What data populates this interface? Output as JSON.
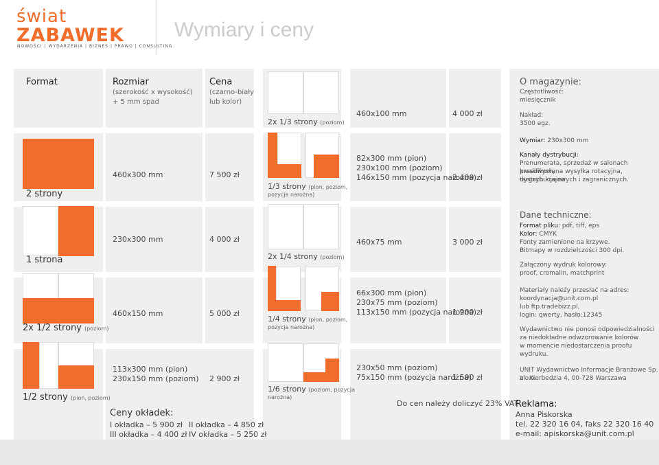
{
  "logo": {
    "line1": "świat",
    "line2": "ZABAWEK",
    "tagline": "NOWOŚCI | WYDARZENIA | BIZNES | PRAWO | CONSULTING"
  },
  "page_title": "Wymiary i ceny",
  "colors": {
    "accent": "#f26c2b",
    "panel": "#efefef"
  },
  "headers": {
    "format": "Format",
    "size_title": "Rozmiar",
    "size_note1": "(szerokość x wysokość)",
    "size_note2": "+ 5 mm spad",
    "price_title": "Cena",
    "price_note1": "(czarno-biały",
    "price_note2": "lub kolor)"
  },
  "left_rows": [
    {
      "label": "2 strony",
      "size": "460x300 mm",
      "price": "7 500 zł"
    },
    {
      "label": "1 strona",
      "size": "230x300 mm",
      "price": "4 000 zł"
    },
    {
      "label": "2x 1/2 strony",
      "label_note": "(poziom)",
      "size": "460x150 mm",
      "price": "5 000 zł"
    },
    {
      "label": "1/2 strony",
      "label_note": "(pion, poziom)",
      "size1": "113x300 mm (pion)",
      "size2": "230x150 mm (poziom)",
      "price": "2 900 zł"
    }
  ],
  "cover_prices": {
    "title": "Ceny okładek:",
    "c1": "I okładka – 5 900 zł",
    "c2": "II okładka – 4 850 zł",
    "c3": "III okładka – 4 400 zł",
    "c4": "IV okładka – 5 250 zł"
  },
  "mid_rows": [
    {
      "label": "2x 1/3 strony",
      "label_note": "(poziom)",
      "size": "460x100 mm",
      "price": "4 000 zł"
    },
    {
      "label": "1/3 strony",
      "label_note": "(pion, poziom,",
      "label_note2": "pozycja narożna)",
      "size1": "82x300 mm (pion)",
      "size2": "230x100 mm (poziom)",
      "size3": "146x150 mm (pozycja narożna)",
      "price": "2 400 zł"
    },
    {
      "label": "2x 1/4 strony",
      "label_note": "(poziom)",
      "size": "460x75 mm",
      "price": "3 000 zł"
    },
    {
      "label": "1/4 strony",
      "label_note": "(pion, poziom,",
      "label_note2": "pozycja narożna)",
      "size1": "66x300 mm (pion)",
      "size2": "230x75 mm (poziom)",
      "size3": "113x150 mm (pozycja narożna)",
      "price": "1 900 zł"
    },
    {
      "label": "1/6 strony",
      "label_note": "(poziom, pozycja",
      "label_note2": "narożna)",
      "size1": "230x50 mm (poziom)",
      "size2": "75x150 mm (pozycja narożna)",
      "price": "1 500 zł"
    }
  ],
  "vat_note": "Do cen należy doliczyć 23% VAT",
  "magazine": {
    "title": "O magazynie:",
    "freq_label": "Częstotliwość:",
    "freq_value": "miesięcznik",
    "run_label": "Nakład:",
    "run_value": "3500 egz.",
    "dim_label": "Wymiar:",
    "dim_value": "230x300 mm",
    "dist_label": "Kanały dystrybucji:",
    "dist_1": "Prenumerata, sprzedaż w salonach prasowych,",
    "dist_2": "kwalifikowana wysyłka rotacyjna, dystrybucja na",
    "dist_3": "targach krajowych i zagranicznych."
  },
  "tech": {
    "title": "Dane techniczne:",
    "file_label": "Format pliku:",
    "file_value": "pdf, tiff, eps",
    "color_label": "Kolor:",
    "color_value": "CMYK",
    "fonts": "Fonty zamienione na krzywe.",
    "bitmaps": "Bitmapy w rozdzielczości 300 dpi.",
    "proof1": "Załączony wydruk kolorowy:",
    "proof2": "proof, cromalin, matchprint",
    "send1": "Materiały należy przesłać na adres:",
    "send2": "koordynacja@unit.com.pl",
    "send3": "lub ftp.tradebizz.pl,",
    "send4": "login: qwerty, hasło:12345",
    "disc1": "Wydawnictwo nie ponosi odpowiedzialności",
    "disc2": "za niedokładne odwzorowanie kolorów",
    "disc3": "w momencie niedostarczenia proofu wydruku."
  },
  "publisher": {
    "name": "UNIT Wydawnictwo Informacje Branżowe Sp. z o.o.",
    "address": "ul. Kierbedzia 4, 00-728 Warszawa"
  },
  "contact": {
    "title": "Reklama:",
    "person": "Anna Piskorska",
    "phone": "tel. 22 320 16 04, faks 22 320 16 40",
    "email": "e-mail: apiskorska@unit.com.pl"
  }
}
